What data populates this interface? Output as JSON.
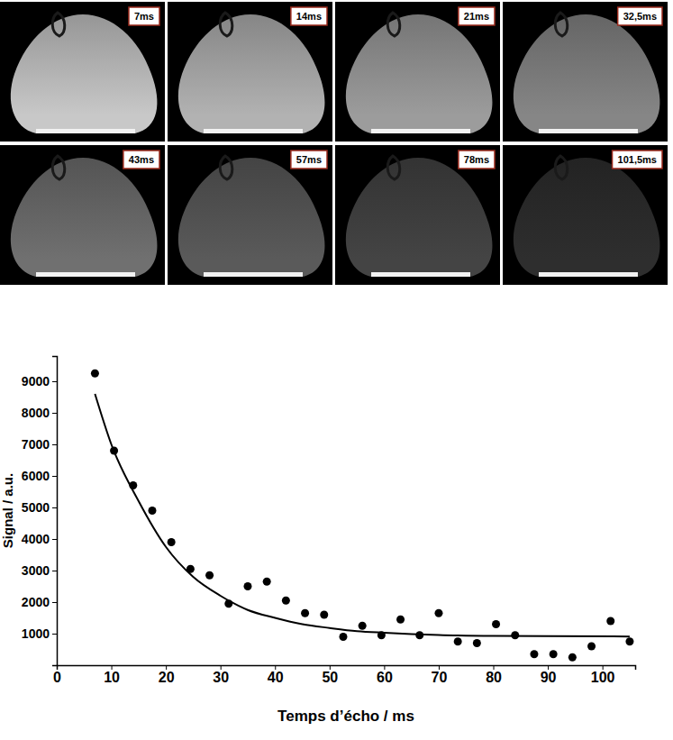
{
  "images": {
    "labels": [
      "7ms",
      "14ms",
      "21ms",
      "32,5ms",
      "43ms",
      "57ms",
      "78ms",
      "101,5ms"
    ]
  },
  "chart_data": {
    "type": "scatter",
    "xlabel": "Temps d’écho / ms",
    "ylabel": "Signal / a.u.",
    "xlim": [
      0,
      106
    ],
    "ylim": [
      0,
      9800
    ],
    "xticks": [
      0,
      10,
      20,
      30,
      40,
      50,
      60,
      70,
      80,
      90,
      100
    ],
    "yticks": [
      1000,
      2000,
      3000,
      4000,
      5000,
      6000,
      7000,
      8000,
      9000
    ],
    "grid": false,
    "series": [
      {
        "type": "scatter",
        "color": "#000000",
        "marker": "circle",
        "x": [
          7,
          10.5,
          14,
          17.5,
          21,
          24.5,
          28,
          31.5,
          35,
          38.5,
          42,
          45.5,
          49,
          52.5,
          56,
          59.5,
          63,
          66.5,
          70,
          73.5,
          77,
          80.5,
          84,
          87.5,
          91,
          94.5,
          98,
          101.5,
          105
        ],
        "values": [
          9250,
          6800,
          5700,
          4900,
          3900,
          3050,
          2850,
          1950,
          2500,
          2650,
          2050,
          1650,
          1600,
          900,
          1250,
          950,
          1450,
          950,
          1650,
          750,
          700,
          1300,
          950,
          350,
          350,
          250,
          600,
          1400,
          750
        ]
      },
      {
        "type": "line",
        "color": "#000000",
        "line_style": "solid",
        "x": [
          7,
          10,
          15,
          20,
          25,
          30,
          35,
          40,
          45,
          50,
          55,
          60,
          70,
          80,
          90,
          105
        ],
        "values": [
          8600,
          7000,
          5200,
          3750,
          2800,
          2200,
          1750,
          1500,
          1300,
          1180,
          1080,
          1030,
          960,
          930,
          920,
          910
        ]
      }
    ]
  }
}
